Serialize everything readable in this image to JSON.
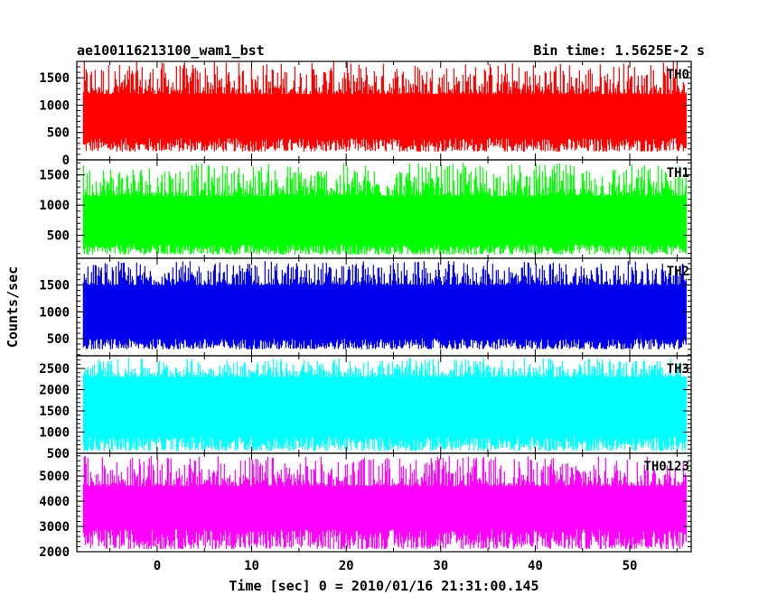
{
  "chart_data": {
    "type": "line",
    "title_left": "ae100116213100_wam1_bst",
    "title_right": "Bin time: 1.5625E-2 s",
    "xlabel": "Time [sec] 0 = 2010/01/16 21:31:00.145",
    "ylabel": "Counts/sec",
    "xlim": [
      -8.5,
      56.5
    ],
    "data_x_range": [
      -7.8,
      56.0
    ],
    "x_ticks": [
      0,
      10,
      20,
      30,
      40,
      50
    ],
    "x_tick_labels": [
      "0",
      "10",
      "20",
      "30",
      "40",
      "50"
    ],
    "grid": false,
    "panels": [
      {
        "name": "TH0",
        "color": "#ff0000",
        "ylim": [
          0,
          1800
        ],
        "y_ticks": [
          0,
          500,
          1000,
          1500
        ],
        "y_tick_labels": [
          "0",
          "500",
          "1000",
          "1500"
        ],
        "mean": 850,
        "envelope_low": [
          150,
          400
        ],
        "envelope_high": [
          1200,
          1800
        ]
      },
      {
        "name": "TH1",
        "color": "#00ff00",
        "ylim": [
          120,
          1750
        ],
        "y_ticks": [
          500,
          1000,
          1500
        ],
        "y_tick_labels": [
          "500",
          "1000",
          "1500"
        ],
        "mean": 750,
        "envelope_low": [
          180,
          350
        ],
        "envelope_high": [
          1150,
          1700
        ]
      },
      {
        "name": "TH2",
        "color": "#0000ee",
        "ylim": [
          180,
          2000
        ],
        "y_ticks": [
          500,
          1000,
          1500
        ],
        "y_tick_labels": [
          "500",
          "1000",
          "1500"
        ],
        "mean": 1000,
        "envelope_low": [
          300,
          500
        ],
        "envelope_high": [
          1500,
          1950
        ]
      },
      {
        "name": "TH3",
        "color": "#00ffff",
        "ylim": [
          500,
          2800
        ],
        "y_ticks": [
          500,
          1000,
          1500,
          2000,
          2500
        ],
        "y_tick_labels": [
          "500",
          "1000",
          "1500",
          "2000",
          "2500"
        ],
        "mean": 1600,
        "envelope_low": [
          550,
          900
        ],
        "envelope_high": [
          2300,
          2750
        ]
      },
      {
        "name": "TH0123",
        "color": "#ff00ff",
        "ylim": [
          2000,
          5900
        ],
        "y_ticks": [
          2000,
          3000,
          4000,
          5000
        ],
        "y_tick_labels": [
          "2000",
          "3000",
          "4000",
          "5000"
        ],
        "mean": 3700,
        "envelope_low": [
          2100,
          2900
        ],
        "envelope_high": [
          4600,
          5800
        ]
      }
    ]
  }
}
